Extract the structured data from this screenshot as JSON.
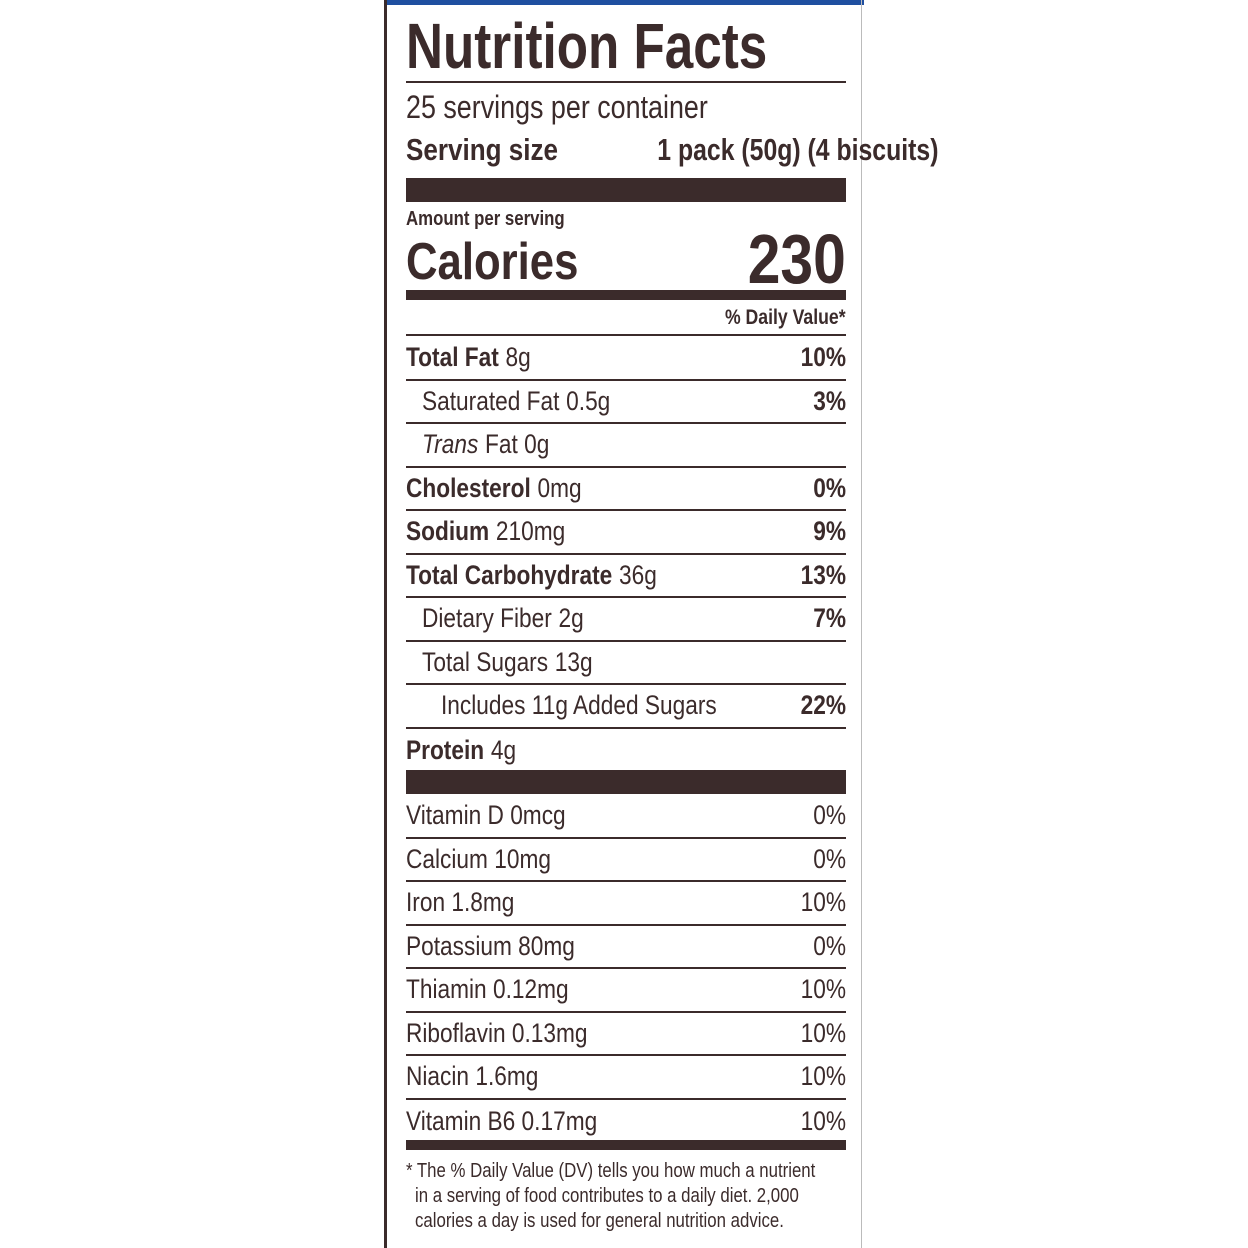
{
  "title": "Nutrition Facts",
  "servings": "25 servings per container",
  "serving_size": {
    "label": "Serving size",
    "value": "1 pack (50g) (4 biscuits)"
  },
  "amount_per_serving": "Amount per serving",
  "calories": {
    "label": "Calories",
    "value": "230"
  },
  "daily_value_header": "% Daily Value*",
  "nutrients": [
    {
      "name": "Total Fat",
      "amount": "8g",
      "dv": "10%"
    },
    {
      "name": "Saturated Fat",
      "amount": "0.5g",
      "dv": "3%"
    },
    {
      "name": "Trans",
      "amount": "Fat 0g"
    },
    {
      "name": "Cholesterol",
      "amount": "0mg",
      "dv": "0%"
    },
    {
      "name": "Sodium",
      "amount": "210mg",
      "dv": "9%"
    },
    {
      "name": "Total Carbohydrate",
      "amount": "36g",
      "dv": "13%"
    },
    {
      "name": "Dietary Fiber",
      "amount": "2g",
      "dv": "7%"
    },
    {
      "name": "Total Sugars",
      "amount": "13g"
    },
    {
      "name": "Includes 11g Added Sugars",
      "dv": "22%"
    },
    {
      "name": "Protein",
      "amount": "4g"
    }
  ],
  "vitamins": [
    {
      "name": "Vitamin D 0mcg",
      "dv": "0%"
    },
    {
      "name": "Calcium 10mg",
      "dv": "0%"
    },
    {
      "name": "Iron 1.8mg",
      "dv": "10%"
    },
    {
      "name": "Potassium 80mg",
      "dv": "0%"
    },
    {
      "name": "Thiamin 0.12mg",
      "dv": "10%"
    },
    {
      "name": "Riboflavin 0.13mg",
      "dv": "10%"
    },
    {
      "name": "Niacin 1.6mg",
      "dv": "10%"
    },
    {
      "name": "Vitamin B6 0.17mg",
      "dv": "10%"
    }
  ],
  "footnote": [
    "* The % Daily Value (DV) tells you how much a nutrient",
    "in a serving of food contributes to a daily diet. 2,000",
    "calories a day is used for general nutrition advice."
  ]
}
